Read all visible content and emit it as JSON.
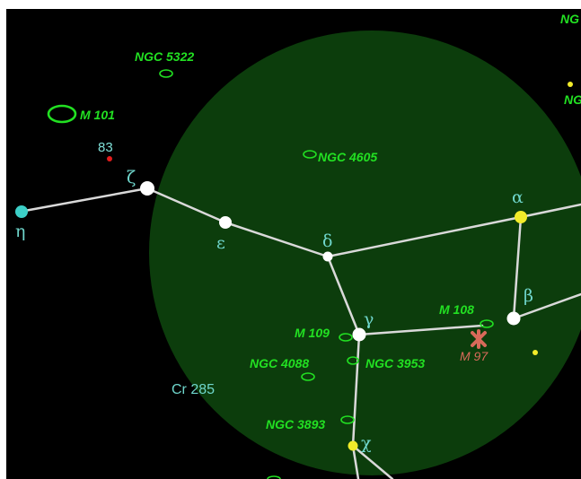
{
  "field_of_view": {
    "color": "#0c3d0c"
  },
  "colors": {
    "line": "#d9d9d9",
    "star_white": "#ffffff",
    "star_yellow": "#f2ec2a",
    "star_cyan": "#3ccfc7",
    "star_red": "#e21c1c",
    "dso": "#22e022",
    "planetary_nebula": "#d86a5a"
  },
  "stars": [
    {
      "id": "zeta",
      "greek": "ζ",
      "color": "white"
    },
    {
      "id": "epsilon",
      "greek": "ε",
      "color": "white"
    },
    {
      "id": "delta",
      "greek": "δ",
      "color": "white"
    },
    {
      "id": "alpha",
      "greek": "α",
      "color": "yellow"
    },
    {
      "id": "beta",
      "greek": "β",
      "color": "white"
    },
    {
      "id": "gamma",
      "greek": "γ",
      "color": "white"
    },
    {
      "id": "chi",
      "greek": "χ",
      "color": "yellow"
    },
    {
      "id": "eta",
      "greek": "η",
      "color": "cyan"
    },
    {
      "id": "83",
      "number": "83",
      "color": "red"
    }
  ],
  "deep_sky": [
    {
      "id": "ngc5322",
      "label": "NGC 5322"
    },
    {
      "id": "m101",
      "label": "M 101"
    },
    {
      "id": "ngc4605",
      "label": "NGC 4605"
    },
    {
      "id": "m108",
      "label": "M 108"
    },
    {
      "id": "m97",
      "label": "M 97"
    },
    {
      "id": "m109",
      "label": "M 109"
    },
    {
      "id": "ngc4088",
      "label": "NGC 4088"
    },
    {
      "id": "ngc3953",
      "label": "NGC 3953"
    },
    {
      "id": "ngc3893",
      "label": "NGC 3893"
    }
  ],
  "clusters": [
    {
      "id": "cr285",
      "label": "Cr 285"
    }
  ],
  "edge_labels": {
    "top_right": "NG",
    "right": "NG"
  }
}
